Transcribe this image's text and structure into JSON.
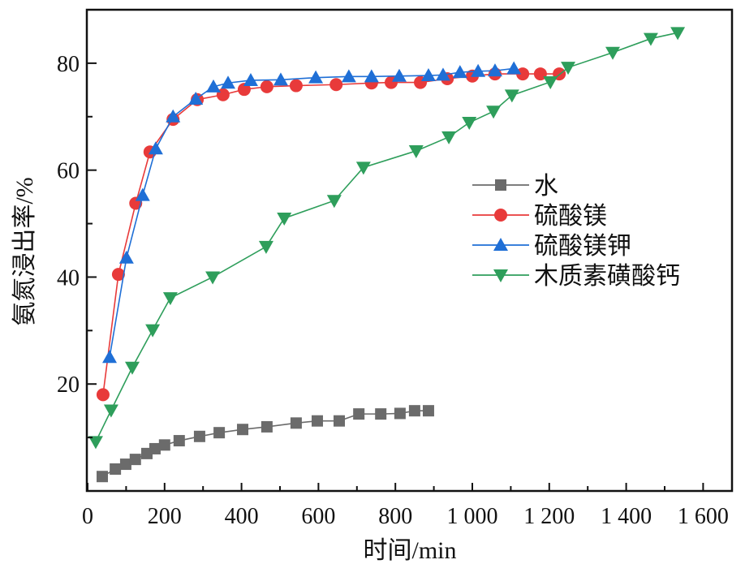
{
  "chart_data": {
    "type": "line",
    "title": "",
    "xlabel": "时间/min",
    "ylabel": "氨氮浸出率/%",
    "xlim": [
      0,
      1675
    ],
    "ylim": [
      0,
      90
    ],
    "xticks": [
      0,
      200,
      400,
      600,
      800,
      1000,
      1200,
      1400,
      1600
    ],
    "xtick_labels": [
      "0",
      "200",
      "400",
      "600",
      "800",
      "1 000",
      "1 200",
      "1 400",
      "1 600"
    ],
    "yticks": [
      20,
      40,
      60,
      80
    ],
    "ytick_labels": [
      "20",
      "40",
      "60",
      "80"
    ],
    "grid": false,
    "legend_position": "center-right",
    "series": [
      {
        "name": "水",
        "color": "#6b6b6b",
        "marker": "square",
        "x": [
          38,
          72,
          99,
          124,
          154,
          175,
          200,
          238,
          291,
          342,
          403,
          466,
          542,
          597,
          654,
          705,
          762,
          812,
          850,
          886
        ],
        "y": [
          2.7,
          4.1,
          5.0,
          5.9,
          7.0,
          7.9,
          8.6,
          9.4,
          10.2,
          10.9,
          11.5,
          12.0,
          12.7,
          13.1,
          13.1,
          14.4,
          14.4,
          14.5,
          15.0,
          15.0
        ]
      },
      {
        "name": "硫酸镁",
        "color": "#e83a3a",
        "marker": "circle",
        "x": [
          40,
          80,
          125,
          162,
          222,
          285,
          352,
          407,
          466,
          542,
          646,
          738,
          789,
          865,
          935,
          1000,
          1059,
          1131,
          1177,
          1226
        ],
        "y": [
          18.0,
          40.5,
          53.8,
          63.4,
          69.5,
          73.2,
          74.1,
          75.1,
          75.6,
          75.8,
          76.0,
          76.3,
          76.4,
          76.4,
          77.1,
          77.6,
          78.0,
          78.0,
          78.0,
          78.0
        ]
      },
      {
        "name": "硫酸镁钾",
        "color": "#1f6fd6",
        "marker": "triangle-up",
        "x": [
          57,
          101,
          143,
          177,
          222,
          281,
          327,
          365,
          424,
          502,
          593,
          679,
          738,
          810,
          886,
          924,
          968,
          1015,
          1059,
          1108
        ],
        "y": [
          25.0,
          43.6,
          55.3,
          64.0,
          70.0,
          73.3,
          75.6,
          76.3,
          76.8,
          76.9,
          77.3,
          77.5,
          77.5,
          77.6,
          77.7,
          77.8,
          78.3,
          78.5,
          78.6,
          79.0
        ]
      },
      {
        "name": "木质素磺酸钙",
        "color": "#2e9e5b",
        "marker": "triangle-down",
        "x": [
          21,
          61,
          116,
          169,
          215,
          325,
          464,
          511,
          641,
          717,
          854,
          939,
          992,
          1055,
          1103,
          1203,
          1249,
          1365,
          1464,
          1534
        ],
        "y": [
          9.2,
          15.1,
          23.1,
          30.1,
          36.1,
          40.0,
          45.7,
          51.0,
          54.3,
          60.5,
          63.6,
          66.2,
          68.9,
          71.0,
          74.0,
          76.5,
          79.2,
          82.0,
          84.6,
          85.7
        ]
      }
    ]
  }
}
